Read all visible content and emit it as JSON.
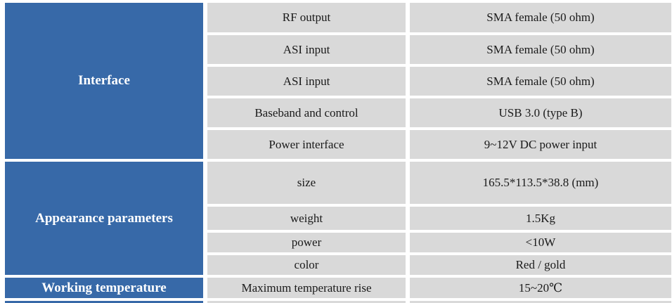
{
  "table": {
    "colors": {
      "group_background": "#3769A8",
      "cell_background": "#D9D9D9",
      "group_text": "#FFFFFF",
      "cell_text": "#1A1A1A"
    },
    "sections": [
      {
        "group": "Interface",
        "rows": [
          {
            "param": "RF output",
            "value": "SMA female (50 ohm)"
          },
          {
            "param": "ASI input",
            "value": "SMA female (50 ohm)"
          },
          {
            "param": "ASI input",
            "value": "SMA female (50 ohm)"
          },
          {
            "param": "Baseband and control",
            "value": "USB 3.0 (type B)"
          },
          {
            "param": "Power interface",
            "value": "9~12V DC power input"
          }
        ]
      },
      {
        "group": "Appearance parameters",
        "rows": [
          {
            "param": "size",
            "value": "165.5*113.5*38.8 (mm)"
          },
          {
            "param": "weight",
            "value": "1.5Kg"
          },
          {
            "param": "power",
            "value": "<10W"
          },
          {
            "param": "color",
            "value": "Red / gold"
          }
        ]
      },
      {
        "group": "Working temperature",
        "rows": [
          {
            "param": "Maximum temperature rise",
            "value": "15~20℃"
          }
        ]
      }
    ]
  }
}
